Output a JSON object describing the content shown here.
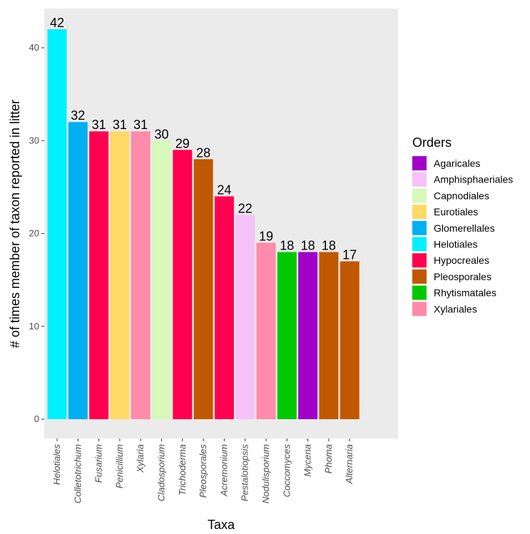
{
  "chart_data": {
    "type": "bar",
    "title": "",
    "xlabel": "Taxa",
    "ylabel": "# of times member of taxon reported in litter",
    "ylim": [
      0,
      44
    ],
    "yticks": [
      0,
      10,
      20,
      30,
      40
    ],
    "grid": false,
    "legend_title": "Orders",
    "legend_position": "right",
    "categories": [
      "Helotiales",
      "Colletotrichum",
      "Fusarium",
      "Penicillium",
      "Xylaria",
      "Cladosporium",
      "Trichoderma",
      "Pleosporales",
      "Acremonium",
      "Pestalotiopsis",
      "Nodulisporium",
      "Coccomyces",
      "Mycena",
      "Phoma",
      "Alternaria"
    ],
    "values": [
      42,
      32,
      31,
      31,
      31,
      30,
      29,
      28,
      24,
      22,
      19,
      18,
      18,
      18,
      17
    ],
    "orders": [
      "Helotiales",
      "Glomerellales",
      "Hypocreales",
      "Eurotiales",
      "Xylariales",
      "Capnodiales",
      "Hypocreales",
      "Pleosporales",
      "Hypocreales",
      "Amphisphaeriales",
      "Xylariales",
      "Rhytismatales",
      "Agaricales",
      "Pleosporales",
      "Pleosporales"
    ],
    "legend": [
      {
        "name": "Agaricales",
        "color": "#a000c8"
      },
      {
        "name": "Amphisphaeriales",
        "color": "#f4c2f8"
      },
      {
        "name": "Capnodiales",
        "color": "#d8f8bc"
      },
      {
        "name": "Eurotiales",
        "color": "#ffd966"
      },
      {
        "name": "Glomerellales",
        "color": "#00b0f0"
      },
      {
        "name": "Helotiales",
        "color": "#00f0ff"
      },
      {
        "name": "Hypocreales",
        "color": "#ff0050"
      },
      {
        "name": "Pleosporales",
        "color": "#c05800"
      },
      {
        "name": "Rhytismatales",
        "color": "#00c800"
      },
      {
        "name": "Xylariales",
        "color": "#ff8aaa"
      }
    ],
    "panel_color": "#ebebeb"
  }
}
